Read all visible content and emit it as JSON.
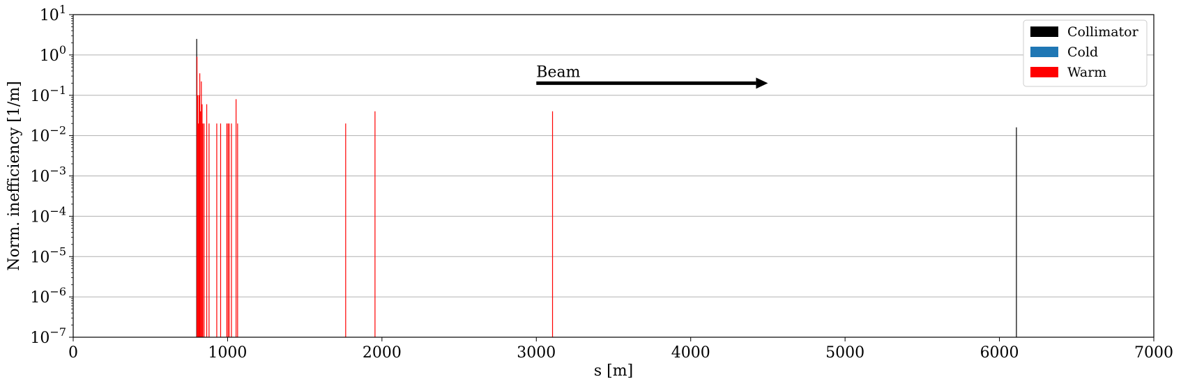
{
  "chart_data": {
    "type": "bar",
    "title": "",
    "xlabel": "s [m]",
    "ylabel": "Norm. inefficiency [1/m]",
    "xlim": [
      0,
      7000
    ],
    "ylim": [
      1e-07,
      10
    ],
    "yscale": "log",
    "x_ticks": [
      0,
      1000,
      2000,
      3000,
      4000,
      5000,
      6000,
      7000
    ],
    "y_ticks": [
      {
        "value": 1e-07,
        "base": "10",
        "exp": "−7"
      },
      {
        "value": 1e-06,
        "base": "10",
        "exp": "−6"
      },
      {
        "value": 1e-05,
        "base": "10",
        "exp": "−5"
      },
      {
        "value": 0.0001,
        "base": "10",
        "exp": "−4"
      },
      {
        "value": 0.001,
        "base": "10",
        "exp": "−3"
      },
      {
        "value": 0.01,
        "base": "10",
        "exp": "−2"
      },
      {
        "value": 0.1,
        "base": "10",
        "exp": "−1"
      },
      {
        "value": 1,
        "base": "10",
        "exp": "0"
      },
      {
        "value": 10,
        "base": "10",
        "exp": "1"
      }
    ],
    "grid": "y-major",
    "legend_position": "top-right",
    "series": [
      {
        "name": "Collimator",
        "color": "#000000",
        "points": [
          {
            "x": 800,
            "y": 2.5
          },
          {
            "x": 6110,
            "y": 0.016
          }
        ]
      },
      {
        "name": "Cold",
        "color": "#1f77b4",
        "points": []
      },
      {
        "name": "Warm",
        "color": "#ff0000",
        "points": [
          {
            "x": 802,
            "y": 0.9
          },
          {
            "x": 806,
            "y": 0.1
          },
          {
            "x": 810,
            "y": 0.02
          },
          {
            "x": 815,
            "y": 0.1
          },
          {
            "x": 820,
            "y": 0.35
          },
          {
            "x": 825,
            "y": 0.04
          },
          {
            "x": 830,
            "y": 0.22
          },
          {
            "x": 835,
            "y": 0.06
          },
          {
            "x": 840,
            "y": 0.02
          },
          {
            "x": 848,
            "y": 0.02
          },
          {
            "x": 865,
            "y": 0.06
          },
          {
            "x": 880,
            "y": 0.02
          },
          {
            "x": 930,
            "y": 0.02
          },
          {
            "x": 955,
            "y": 0.02
          },
          {
            "x": 995,
            "y": 0.02
          },
          {
            "x": 1003,
            "y": 0.02
          },
          {
            "x": 1010,
            "y": 0.02
          },
          {
            "x": 1025,
            "y": 0.02
          },
          {
            "x": 1055,
            "y": 0.08
          },
          {
            "x": 1065,
            "y": 0.02
          },
          {
            "x": 1765,
            "y": 0.02
          },
          {
            "x": 1955,
            "y": 0.04
          },
          {
            "x": 3105,
            "y": 0.04
          }
        ]
      }
    ],
    "annotations": [
      {
        "text": "Beam",
        "arrow_from": [
          3000,
          0.2
        ],
        "arrow_to": [
          4500,
          0.2
        ]
      }
    ]
  }
}
